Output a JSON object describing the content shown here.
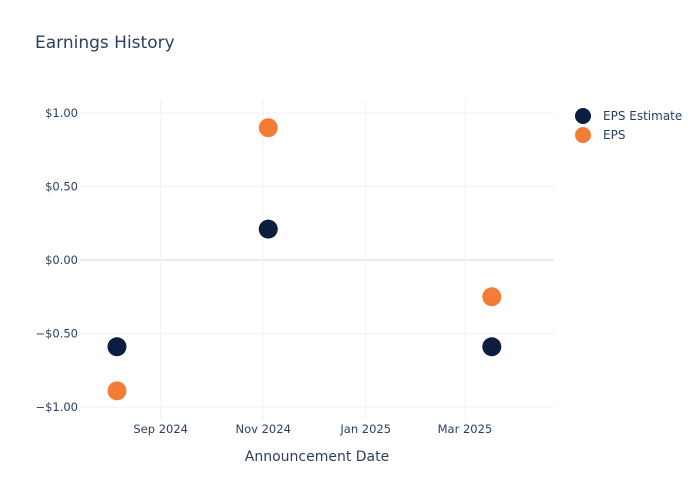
{
  "chart_data": {
    "type": "scatter",
    "title": "Earnings History",
    "xlabel": "Announcement Date",
    "ylabel": "",
    "x_ticks": [
      {
        "label": "Sep 2024",
        "date": "2024-09-01"
      },
      {
        "label": "Nov 2024",
        "date": "2024-11-01"
      },
      {
        "label": "Jan 2025",
        "date": "2025-01-01"
      },
      {
        "label": "Mar 2025",
        "date": "2025-03-01"
      }
    ],
    "y_ticks": [
      {
        "label": "$1.00",
        "value": 1.0
      },
      {
        "label": "$0.50",
        "value": 0.5
      },
      {
        "label": "$0.00",
        "value": 0.0
      },
      {
        "label": "−$0.50",
        "value": -0.5
      },
      {
        "label": "−$1.00",
        "value": -1.0
      }
    ],
    "xlim": [
      "2024-07-15",
      "2025-04-23"
    ],
    "ylim": [
      -1.1,
      1.1
    ],
    "grid": true,
    "legend_position": "top-right",
    "series": [
      {
        "name": "EPS Estimate",
        "color": "#0b1e3f",
        "points": [
          {
            "x": "2024-08-06",
            "y": -0.59
          },
          {
            "x": "2024-11-04",
            "y": 0.21
          },
          {
            "x": "2025-03-17",
            "y": -0.59
          }
        ]
      },
      {
        "name": "EPS",
        "color": "#f47d35",
        "points": [
          {
            "x": "2024-08-06",
            "y": -0.89
          },
          {
            "x": "2024-11-04",
            "y": 0.9
          },
          {
            "x": "2025-03-17",
            "y": -0.25
          }
        ]
      }
    ]
  }
}
